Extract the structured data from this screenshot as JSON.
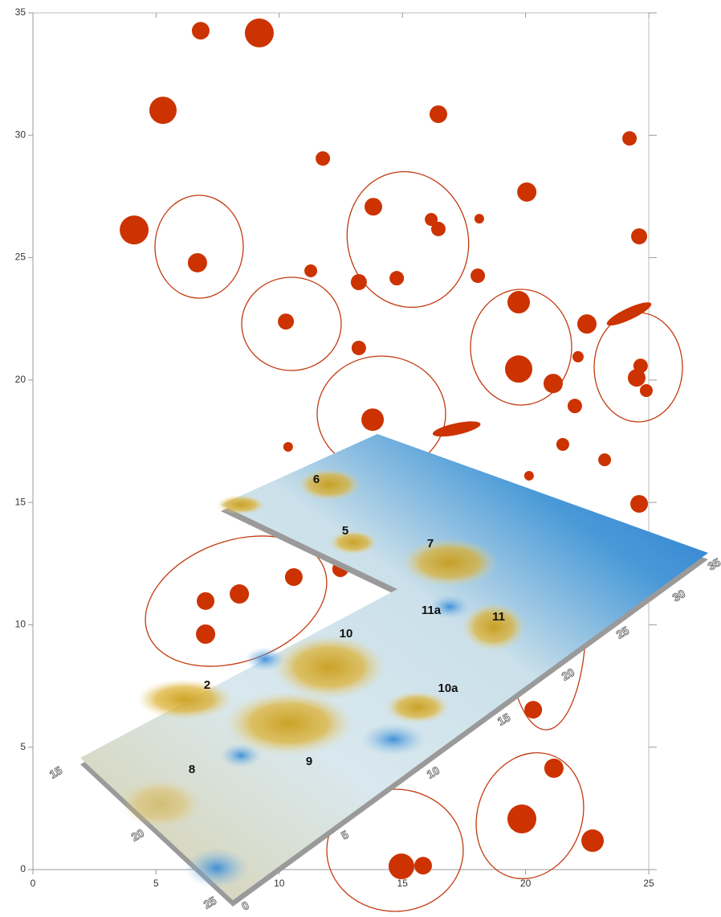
{
  "chart_data": {
    "type": "scatter",
    "color": "#cc3300",
    "x": [
      6.81,
      9.19,
      5.28,
      16.46,
      24.22,
      11.77,
      20.05,
      13.82,
      16.17,
      16.46,
      18.12,
      4.11,
      24.61,
      6.68,
      11.28,
      13.23,
      14.77,
      18.06,
      19.72,
      22.49,
      10.27,
      13.23,
      22.13,
      19.72,
      21.12,
      24.67,
      24.51,
      24.9,
      22.0,
      13.79,
      10.36,
      21.51,
      23.21,
      20.14,
      24.61,
      10.59,
      8.38,
      7.01,
      7.01,
      12.48,
      20.31,
      21.15,
      19.85,
      22.72,
      15.84,
      14.96,
      24.2,
      17.2
    ],
    "values": [
      34.27,
      34.18,
      31.02,
      30.86,
      29.87,
      29.05,
      27.68,
      27.08,
      26.56,
      26.17,
      26.59,
      26.13,
      25.87,
      24.79,
      24.46,
      24.0,
      24.16,
      24.26,
      23.18,
      22.29,
      22.39,
      21.31,
      20.95,
      20.45,
      19.86,
      20.58,
      20.09,
      19.57,
      18.94,
      18.38,
      17.27,
      17.37,
      16.74,
      16.09,
      14.94,
      11.95,
      11.26,
      10.97,
      9.62,
      12.28,
      6.53,
      4.14,
      2.07,
      1.18,
      0.16,
      0.13,
      22.7,
      18.0
    ],
    "sizes": [
      11,
      18,
      17,
      11,
      9,
      9,
      12,
      11,
      8,
      9,
      6,
      18,
      10,
      12,
      8,
      10,
      9,
      9,
      14,
      12,
      10,
      9,
      7,
      17,
      12,
      9,
      11,
      8,
      9,
      14,
      6,
      8,
      8,
      6,
      11,
      11,
      12,
      11,
      12,
      10,
      11,
      12,
      18,
      14,
      11,
      16,
      16,
      16
    ],
    "xlim": [
      0,
      25
    ],
    "ylim": [
      0,
      35
    ],
    "xticks": [
      0,
      5,
      10,
      15,
      20,
      25
    ],
    "yticks": [
      0,
      5,
      10,
      15,
      20,
      25,
      30,
      35
    ],
    "annotations": [
      "6",
      "5",
      "7",
      "11a",
      "11",
      "10",
      "10a",
      "2",
      "8",
      "9"
    ],
    "surface_axis_labels": [
      "15",
      "20",
      "25",
      "0",
      "5",
      "10",
      "15",
      "20",
      "25",
      "30",
      "35"
    ]
  }
}
